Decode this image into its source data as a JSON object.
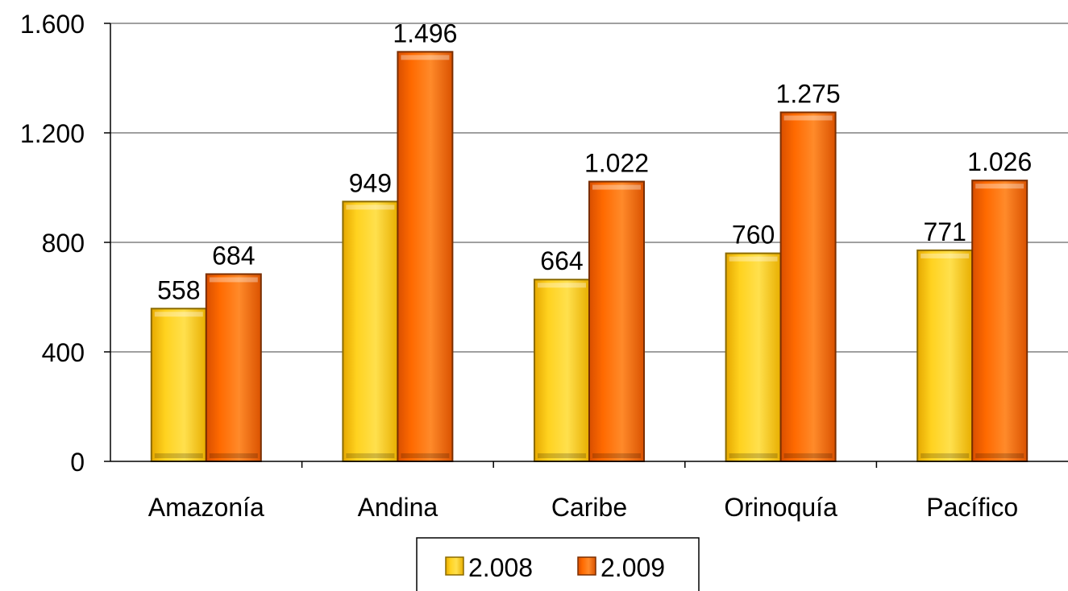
{
  "chart_data": {
    "type": "bar",
    "categories": [
      "Amazonía",
      "Andina",
      "Caribe",
      "Orinoquía",
      "Pacífico"
    ],
    "series": [
      {
        "name": "2.008",
        "values": [
          558,
          949,
          664,
          760,
          771
        ],
        "labels": [
          "558",
          "949",
          "664",
          "760",
          "771"
        ],
        "color": "#FFCC00"
      },
      {
        "name": "2.009",
        "values": [
          684,
          1496,
          1022,
          1275,
          1026
        ],
        "labels": [
          "684",
          "1.496",
          "1.022",
          "1.275",
          "1.026"
        ],
        "color": "#FF6600"
      }
    ],
    "yticks": [
      0,
      400,
      800,
      1200,
      1600
    ],
    "ytick_labels": [
      "0",
      "400",
      "800",
      "1.200",
      "1.600"
    ],
    "ylim": [
      0,
      1600
    ],
    "grid": true,
    "legend": "bottom",
    "title": "",
    "xlabel": "",
    "ylabel": ""
  }
}
